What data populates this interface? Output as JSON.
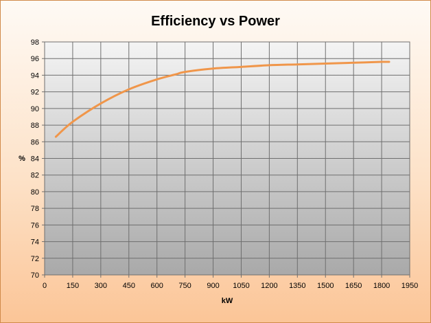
{
  "chart_data": {
    "type": "line",
    "title": "Efficiency vs Power",
    "xlabel": "kW",
    "ylabel": "%",
    "xlim": [
      0,
      1950
    ],
    "ylim": [
      70,
      98
    ],
    "x_ticks": [
      0,
      150,
      300,
      450,
      600,
      750,
      900,
      1050,
      1200,
      1350,
      1500,
      1650,
      1800,
      1950
    ],
    "y_ticks": [
      70,
      72,
      74,
      76,
      78,
      80,
      82,
      84,
      86,
      88,
      90,
      92,
      94,
      96,
      98
    ],
    "grid": true,
    "legend": "none",
    "series": [
      {
        "color": "#f0964a",
        "x": [
          60,
          150,
          300,
          450,
          600,
          700,
          750,
          900,
          1050,
          1200,
          1350,
          1500,
          1650,
          1800,
          1840
        ],
        "y": [
          86.6,
          88.4,
          90.6,
          92.3,
          93.5,
          94.1,
          94.4,
          94.8,
          95.0,
          95.2,
          95.3,
          95.4,
          95.5,
          95.6,
          95.6
        ]
      }
    ]
  }
}
